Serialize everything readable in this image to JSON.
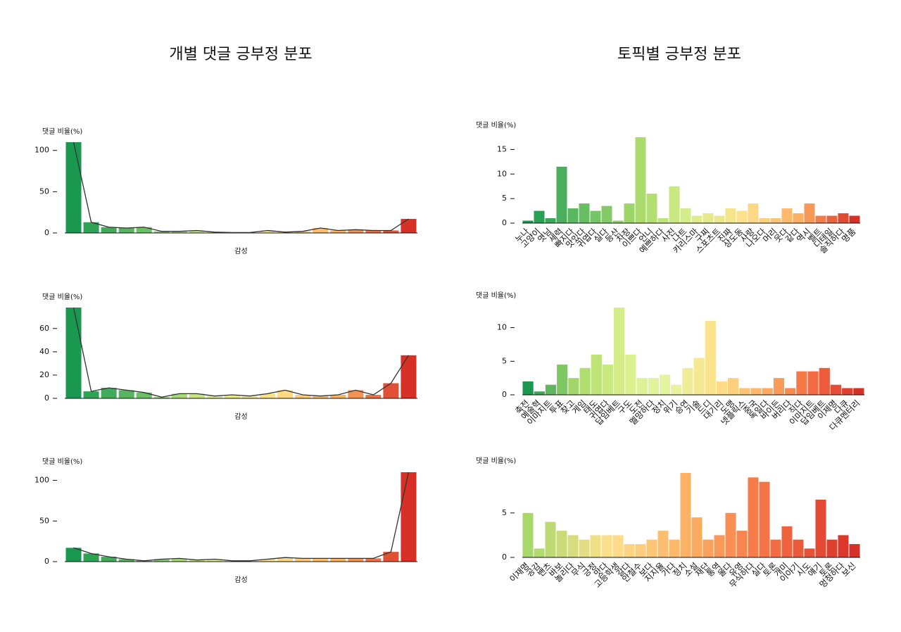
{
  "column_titles": [
    "개별 댓글 긍부정 분포",
    "토픽별 긍부정 분포"
  ],
  "chart_data": [
    {
      "type": "bar",
      "ylabel": "댓글 비율(%)",
      "xlabel": "감성",
      "line": true,
      "values": [
        110,
        13,
        7,
        6,
        7,
        2,
        2,
        3,
        1,
        0.5,
        0.5,
        3,
        1,
        2,
        6,
        3,
        4,
        3,
        3,
        17
      ],
      "ylim": [
        0,
        110
      ],
      "yticks": [
        0,
        50,
        100
      ],
      "colormap": [
        "#1a9850",
        "#66bd63",
        "#d9ef8b",
        "#fee08b",
        "#fdae61",
        "#d73027"
      ]
    },
    {
      "type": "bar",
      "ylabel": "댓글 비율(%)",
      "xlabel": "감성",
      "line": true,
      "values": [
        78,
        6,
        9,
        7,
        5,
        1,
        4,
        4,
        2,
        3,
        2,
        4,
        7,
        3,
        2,
        3,
        7,
        3,
        13,
        37
      ],
      "ylim": [
        0,
        78
      ],
      "yticks": [
        0,
        20,
        40,
        60
      ],
      "colormap": [
        "#1a9850",
        "#66bd63",
        "#d9ef8b",
        "#fee08b",
        "#fdae61",
        "#d73027"
      ]
    },
    {
      "type": "bar",
      "ylabel": "댓글 비율(%)",
      "xlabel": "감성",
      "line": true,
      "values": [
        17,
        10,
        6,
        3,
        1,
        3,
        4,
        2,
        3,
        1,
        1,
        3,
        5,
        4,
        4,
        4,
        4,
        4,
        12,
        110
      ],
      "ylim": [
        0,
        110
      ],
      "yticks": [
        0,
        50,
        100
      ],
      "colormap": [
        "#1a9850",
        "#66bd63",
        "#d9ef8b",
        "#fee08b",
        "#fdae61",
        "#d73027"
      ]
    },
    {
      "type": "bar",
      "ylabel": "댓글 비율(%)",
      "categories": [
        "누나",
        "고양이",
        "엿님",
        "세력",
        "빠지다",
        "맛있다",
        "귀엽다",
        "실다",
        "등산",
        "차장",
        "이쁘다",
        "언니",
        "예쁘하다",
        "사진",
        "나트",
        "카리스마",
        "구찌",
        "스포츠트",
        "진짜",
        "상도동",
        "사랑",
        "나오다",
        "머리",
        "웃다",
        "같다",
        "역시",
        "벨트",
        "디테일",
        "솔직하다",
        "명품"
      ],
      "values": [
        0.5,
        2.5,
        1,
        11.5,
        3,
        4,
        2.5,
        3.5,
        0.5,
        4,
        17.5,
        6,
        1,
        7.5,
        3,
        1.5,
        2,
        1.5,
        3,
        2.5,
        4,
        1,
        1,
        3,
        2,
        4,
        1.5,
        1.5,
        2,
        1.5
      ],
      "ylim": [
        0,
        17.5
      ],
      "yticks": [
        0,
        5,
        10,
        15
      ],
      "colormap": [
        "#1a9850",
        "#66bd63",
        "#a6d96a",
        "#d9ef8b",
        "#fee08b",
        "#fdae61",
        "#d73027"
      ]
    },
    {
      "type": "bar",
      "ylabel": "댓글 비율(%)",
      "categories": [
        "축전",
        "예술혁",
        "이마지트",
        "투표",
        "찾고",
        "게임",
        "태도",
        "귀엽다",
        "답임베트",
        "구도",
        "도전",
        "멜망하다",
        "정치",
        "위기",
        "승연",
        "기술",
        "드디",
        "대기리",
        "도맹",
        "넷플릭스",
        "중국",
        "독일다",
        "바이든",
        "버리다",
        "직다",
        "이마지트",
        "답임베트",
        "이제명",
        "다큐",
        "다큐멘터리"
      ],
      "values": [
        2,
        0.5,
        1.5,
        4.5,
        2.5,
        4,
        6,
        4.5,
        13,
        6,
        2.5,
        2.5,
        3,
        1.5,
        4,
        5.5,
        11,
        2,
        2.5,
        1,
        1,
        1,
        2.5,
        1,
        3.5,
        3.5,
        4,
        1.5,
        1,
        1
      ],
      "ylim": [
        0,
        13
      ],
      "yticks": [
        0,
        5,
        10
      ],
      "colormap": [
        "#1a9850",
        "#a6d96a",
        "#d9ef8b",
        "#e6f5a0",
        "#fee08b",
        "#fdae61",
        "#f46d43",
        "#d73027"
      ]
    },
    {
      "type": "bar",
      "ylabel": "댓글 비율(%)",
      "categories": [
        "이재명",
        "공감",
        "밴츠",
        "바보",
        "놀리다",
        "무식",
        "긍정",
        "맛다",
        "고등학생",
        "갈다",
        "안철수",
        "보다",
        "지지율",
        "가다",
        "정치",
        "소설",
        "재단",
        "통역",
        "울다",
        "유영",
        "무식하다",
        "실다",
        "토론",
        "개미",
        "이야기",
        "시도",
        "얘기",
        "토론",
        "멍청하다",
        "보신"
      ],
      "values": [
        5,
        1,
        4,
        3,
        2.5,
        2,
        2.5,
        2.5,
        2.5,
        1.5,
        1.5,
        2,
        3,
        2,
        9.5,
        4.5,
        2,
        2.5,
        5,
        3,
        9,
        8.5,
        2,
        3.5,
        2,
        1,
        6.5,
        2,
        2.5,
        1.5
      ],
      "ylim": [
        0,
        9.5
      ],
      "yticks": [
        0,
        5
      ],
      "colormap": [
        "#a6d96a",
        "#fee08b",
        "#fdae61",
        "#f46d43",
        "#d73027"
      ]
    }
  ]
}
